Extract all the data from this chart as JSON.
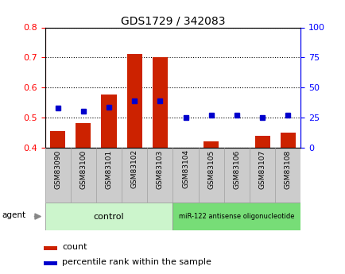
{
  "title": "GDS1729 / 342083",
  "samples": [
    "GSM83090",
    "GSM83100",
    "GSM83101",
    "GSM83102",
    "GSM83103",
    "GSM83104",
    "GSM83105",
    "GSM83106",
    "GSM83107",
    "GSM83108"
  ],
  "count_values": [
    0.456,
    0.482,
    0.578,
    0.712,
    0.7,
    0.402,
    0.423,
    0.402,
    0.44,
    0.452
  ],
  "count_base": 0.4,
  "percentile_values": [
    0.532,
    0.522,
    0.535,
    0.555,
    0.555,
    0.502,
    0.508,
    0.51,
    0.502,
    0.508
  ],
  "ylim_left": [
    0.4,
    0.8
  ],
  "ylim_right": [
    0,
    100
  ],
  "yticks_left": [
    0.4,
    0.5,
    0.6,
    0.7,
    0.8
  ],
  "yticks_right": [
    0,
    25,
    50,
    75,
    100
  ],
  "control_color_light": "#ccf5cc",
  "control_color_dark": "#77dd77",
  "bar_color": "#cc2200",
  "dot_color": "#0000cc",
  "tick_box_color": "#cccccc",
  "control_label": "control",
  "treatment_label": "miR-122 antisense oligonucleotide",
  "agent_label": "agent",
  "legend_count": "count",
  "legend_percentile": "percentile rank within the sample",
  "n_control": 5,
  "n_treatment": 5
}
